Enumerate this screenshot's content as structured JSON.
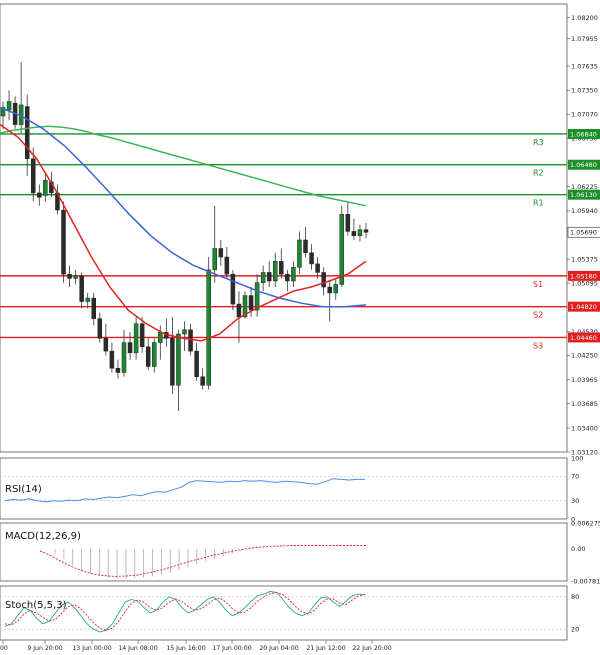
{
  "chart_data": [
    {
      "type": "candlestick",
      "symbol_hint": "",
      "ylim": [
        1.0312,
        1.0836
      ],
      "yticks": [
        "1.08200",
        "1.07955",
        "1.07635",
        "1.07350",
        "1.07070",
        "1.06790",
        "1.06505",
        "1.06225",
        "1.05940",
        "1.05375",
        "1.05095",
        "1.04815",
        "1.04530",
        "1.04250",
        "1.03965",
        "1.03685",
        "1.03400",
        "1.03120"
      ],
      "xticks": [
        "00",
        "9 Jun 20:00",
        "13 Jun 00:00",
        "14 Jun 08:00",
        "15 Jun 16:00",
        "17 Jun 00:00",
        "20 Jun 04:00",
        "21 Jun 12:00",
        "22 Jun 20:00"
      ],
      "price_label": "1.05690",
      "levels": [
        {
          "name": "R3",
          "value": 1.0684,
          "label": "1.06840",
          "color": "#1a8f2a"
        },
        {
          "name": "R2",
          "value": 1.0648,
          "label": "1.06480",
          "color": "#1a8f2a"
        },
        {
          "name": "R1",
          "value": 1.0613,
          "label": "1.06130",
          "color": "#1a8f2a"
        },
        {
          "name": "S1",
          "value": 1.0518,
          "label": "1.05180",
          "color": "#e02020"
        },
        {
          "name": "S2",
          "value": 1.0482,
          "label": "1.04820",
          "color": "#e02020"
        },
        {
          "name": "S3",
          "value": 1.0446,
          "label": "1.04460",
          "color": "#e02020"
        }
      ],
      "candles": [
        [
          1.0705,
          1.0722,
          1.069,
          1.0715
        ],
        [
          1.0712,
          1.0735,
          1.07,
          1.0722
        ],
        [
          1.072,
          1.0728,
          1.069,
          1.0695
        ],
        [
          1.0695,
          1.0768,
          1.0685,
          1.0718
        ],
        [
          1.0716,
          1.073,
          1.0635,
          1.0655
        ],
        [
          1.0655,
          1.0668,
          1.0605,
          1.0615
        ],
        [
          1.0615,
          1.0625,
          1.06,
          1.061
        ],
        [
          1.0612,
          1.0638,
          1.0605,
          1.063
        ],
        [
          1.0628,
          1.064,
          1.061,
          1.0615
        ],
        [
          1.0615,
          1.0625,
          1.059,
          1.0595
        ],
        [
          1.0595,
          1.0605,
          1.051,
          1.052
        ],
        [
          1.052,
          1.053,
          1.0505,
          1.0515
        ],
        [
          1.0515,
          1.0525,
          1.0508,
          1.0518
        ],
        [
          1.0518,
          1.0522,
          1.048,
          1.0488
        ],
        [
          1.0488,
          1.0498,
          1.048,
          1.0492
        ],
        [
          1.0492,
          1.0498,
          1.046,
          1.0468
        ],
        [
          1.0468,
          1.0475,
          1.044,
          1.0445
        ],
        [
          1.0445,
          1.0462,
          1.0425,
          1.043
        ],
        [
          1.043,
          1.044,
          1.0405,
          1.041
        ],
        [
          1.041,
          1.042,
          1.0398,
          1.0405
        ],
        [
          1.0405,
          1.0455,
          1.04,
          1.044
        ],
        [
          1.044,
          1.0452,
          1.042,
          1.0428
        ],
        [
          1.0428,
          1.047,
          1.042,
          1.0462
        ],
        [
          1.0462,
          1.047,
          1.0428,
          1.0435
        ],
        [
          1.0435,
          1.0445,
          1.0408,
          1.0412
        ],
        [
          1.0412,
          1.0445,
          1.0405,
          1.044
        ],
        [
          1.044,
          1.046,
          1.042,
          1.0452
        ],
        [
          1.0452,
          1.0468,
          1.0435,
          1.0445
        ],
        [
          1.0445,
          1.047,
          1.038,
          1.039
        ],
        [
          1.039,
          1.0455,
          1.036,
          1.045
        ],
        [
          1.045,
          1.0465,
          1.043,
          1.0455
        ],
        [
          1.0455,
          1.0462,
          1.0425,
          1.043
        ],
        [
          1.043,
          1.044,
          1.0395,
          1.04
        ],
        [
          1.04,
          1.041,
          1.0385,
          1.039
        ],
        [
          1.039,
          1.054,
          1.0385,
          1.0525
        ],
        [
          1.0525,
          1.06,
          1.051,
          1.055
        ],
        [
          1.055,
          1.056,
          1.053,
          1.054
        ],
        [
          1.054,
          1.0552,
          1.0515,
          1.052
        ],
        [
          1.052,
          1.0525,
          1.0478,
          1.0485
        ],
        [
          1.0485,
          1.05,
          1.044,
          1.047
        ],
        [
          1.047,
          1.05,
          1.0468,
          1.0495
        ],
        [
          1.0495,
          1.0505,
          1.047,
          1.0478
        ],
        [
          1.0478,
          1.052,
          1.047,
          1.051
        ],
        [
          1.051,
          1.053,
          1.05,
          1.0522
        ],
        [
          1.0522,
          1.0535,
          1.0505,
          1.0512
        ],
        [
          1.0512,
          1.0545,
          1.0505,
          1.0535
        ],
        [
          1.0535,
          1.055,
          1.0515,
          1.052
        ],
        [
          1.052,
          1.0525,
          1.05,
          1.0512
        ],
        [
          1.0512,
          1.0535,
          1.0505,
          1.0528
        ],
        [
          1.0528,
          1.057,
          1.052,
          1.056
        ],
        [
          1.056,
          1.0575,
          1.054,
          1.0545
        ],
        [
          1.0545,
          1.0555,
          1.0525,
          1.0532
        ],
        [
          1.0532,
          1.054,
          1.0515,
          1.0522
        ],
        [
          1.0522,
          1.0528,
          1.0495,
          1.0505
        ],
        [
          1.0505,
          1.0512,
          1.0465,
          1.0498
        ],
        [
          1.0498,
          1.0515,
          1.049,
          1.0508
        ],
        [
          1.0508,
          1.06,
          1.0505,
          1.059
        ],
        [
          1.059,
          1.0605,
          1.0565,
          1.057
        ],
        [
          1.057,
          1.0585,
          1.056,
          1.0565
        ],
        [
          1.0565,
          1.0578,
          1.0558,
          1.0572
        ],
        [
          1.0572,
          1.058,
          1.0562,
          1.0569
        ]
      ],
      "ma_green": [
        1.0685,
        1.0688,
        1.069,
        1.0692,
        1.0693,
        1.0692,
        1.069,
        1.0687,
        1.0683,
        1.068,
        1.0676,
        1.0672,
        1.0668,
        1.0664,
        1.066,
        1.0656,
        1.0652,
        1.0648,
        1.0644,
        1.064,
        1.0636,
        1.0632,
        1.0628,
        1.0624,
        1.062,
        1.0616,
        1.0612,
        1.0609,
        1.0606,
        1.0603,
        1.06
      ],
      "ma_blue": [
        1.0715,
        1.0705,
        1.069,
        1.067,
        1.0645,
        1.0618,
        1.059,
        1.0565,
        1.0545,
        1.053,
        1.052,
        1.051,
        1.05,
        1.0492,
        1.0486,
        1.0482,
        1.0482,
        1.0484
      ],
      "ma_red": [
        1.0695,
        1.068,
        1.0655,
        1.062,
        1.058,
        1.054,
        1.0505,
        1.0478,
        1.0462,
        1.045,
        1.0445,
        1.0442,
        1.045,
        1.0468,
        1.048,
        1.049,
        1.05,
        1.0505,
        1.0512,
        1.052,
        1.0535
      ]
    },
    {
      "type": "line",
      "title": "RSI(14)",
      "ylim": [
        0,
        100
      ],
      "yticks": [
        "100",
        "70",
        "30",
        "0"
      ],
      "values": [
        30,
        32,
        31,
        33,
        30,
        28,
        30,
        29,
        31,
        30,
        33,
        32,
        34,
        36,
        35,
        37,
        40,
        38,
        42,
        45,
        44,
        48,
        52,
        60,
        63,
        62,
        61,
        60,
        62,
        61,
        63,
        62,
        63,
        61,
        60,
        62,
        61,
        60,
        58,
        57,
        61,
        66,
        65,
        64,
        65,
        65
      ]
    },
    {
      "type": "bar",
      "title": "MACD(12,26,9)",
      "ylim": [
        -0.007812,
        0.006275
      ],
      "yticks": [
        "0.006275",
        "0.00",
        "-0.007812"
      ],
      "values": [
        -0.001,
        -0.0025,
        -0.004,
        -0.0052,
        -0.006,
        -0.0066,
        -0.007,
        -0.0072,
        -0.0073,
        -0.0072,
        -0.007,
        -0.0067,
        -0.0063,
        -0.0058,
        -0.0052,
        -0.0045,
        -0.0038,
        -0.0031,
        -0.0024,
        -0.0017,
        -0.0011,
        -0.0006,
        -0.0002
      ],
      "signal": [
        -0.0005,
        -0.0015,
        -0.0028,
        -0.004,
        -0.005,
        -0.0058,
        -0.0063,
        -0.0066,
        -0.0067,
        -0.0066,
        -0.0064,
        -0.006,
        -0.0055,
        -0.0049,
        -0.0042,
        -0.0035,
        -0.0028,
        -0.0022,
        -0.0016,
        -0.0011,
        -0.0006,
        -0.0002,
        0.0002,
        0.0004,
        0.0006,
        0.0007,
        0.0008,
        0.0008,
        0.0008,
        0.0008,
        0.0008,
        0.0008,
        0.0008,
        0.0008,
        0.0008
      ]
    },
    {
      "type": "line",
      "title": "Stoch(5,5,3)",
      "ylim": [
        0,
        100
      ],
      "yticks": [
        "80",
        "20"
      ],
      "main": [
        25,
        30,
        45,
        60,
        55,
        40,
        30,
        35,
        50,
        65,
        70,
        60,
        45,
        30,
        20,
        15,
        18,
        30,
        50,
        70,
        75,
        72,
        60,
        50,
        55,
        70,
        80,
        75,
        60,
        50,
        55,
        65,
        75,
        80,
        70,
        55,
        45,
        50,
        60,
        72,
        82,
        85,
        90,
        88,
        75,
        60,
        50,
        45,
        50,
        65,
        78,
        80,
        70,
        62,
        72,
        82,
        85,
        84
      ],
      "signal": [
        30,
        28,
        35,
        48,
        55,
        50,
        42,
        35,
        38,
        50,
        62,
        65,
        58,
        45,
        32,
        22,
        18,
        22,
        35,
        52,
        68,
        74,
        70,
        60,
        55,
        60,
        70,
        76,
        72,
        62,
        55,
        58,
        65,
        74,
        78,
        70,
        58,
        50,
        52,
        60,
        72,
        80,
        86,
        88,
        84,
        74,
        62,
        52,
        48,
        55,
        68,
        76,
        76,
        68,
        66,
        74,
        82,
        84
      ]
    }
  ]
}
